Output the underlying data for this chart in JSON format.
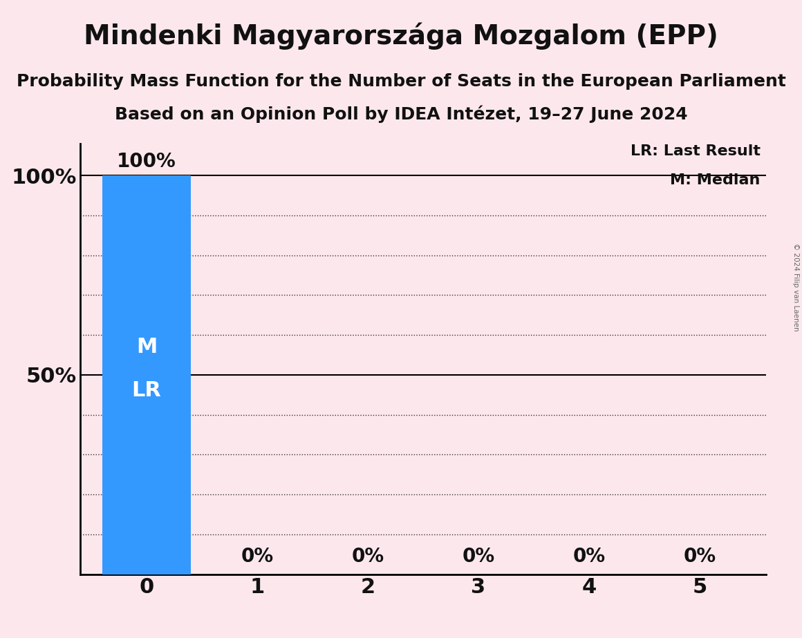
{
  "title": "Mindenki Magyarországa Mozgalom (EPP)",
  "subtitle": "Probability Mass Function for the Number of Seats in the European Parliament",
  "subsubtitle": "Based on an Opinion Poll by IDEA Intézet, 19–27 June 2024",
  "copyright": "© 2024 Filip van Laenen",
  "categories": [
    0,
    1,
    2,
    3,
    4,
    5
  ],
  "values": [
    100,
    0,
    0,
    0,
    0,
    0
  ],
  "bar_color": "#3399ff",
  "background_color": "#fce8ec",
  "text_color": "#111111",
  "bar_label_color": "#ffffff",
  "ylim": [
    0,
    108
  ],
  "yticks": [
    10,
    20,
    30,
    40,
    50,
    60,
    70,
    80,
    90,
    100
  ],
  "solid_lines": [
    50,
    100
  ],
  "legend_lr": "LR: Last Result",
  "legend_m": "M: Median",
  "title_fontsize": 28,
  "subtitle_fontsize": 18,
  "subsubtitle_fontsize": 18,
  "axis_tick_fontsize": 22,
  "bar_label_fontsize": 20,
  "legend_fontsize": 16,
  "m_lr_fontsize": 22
}
